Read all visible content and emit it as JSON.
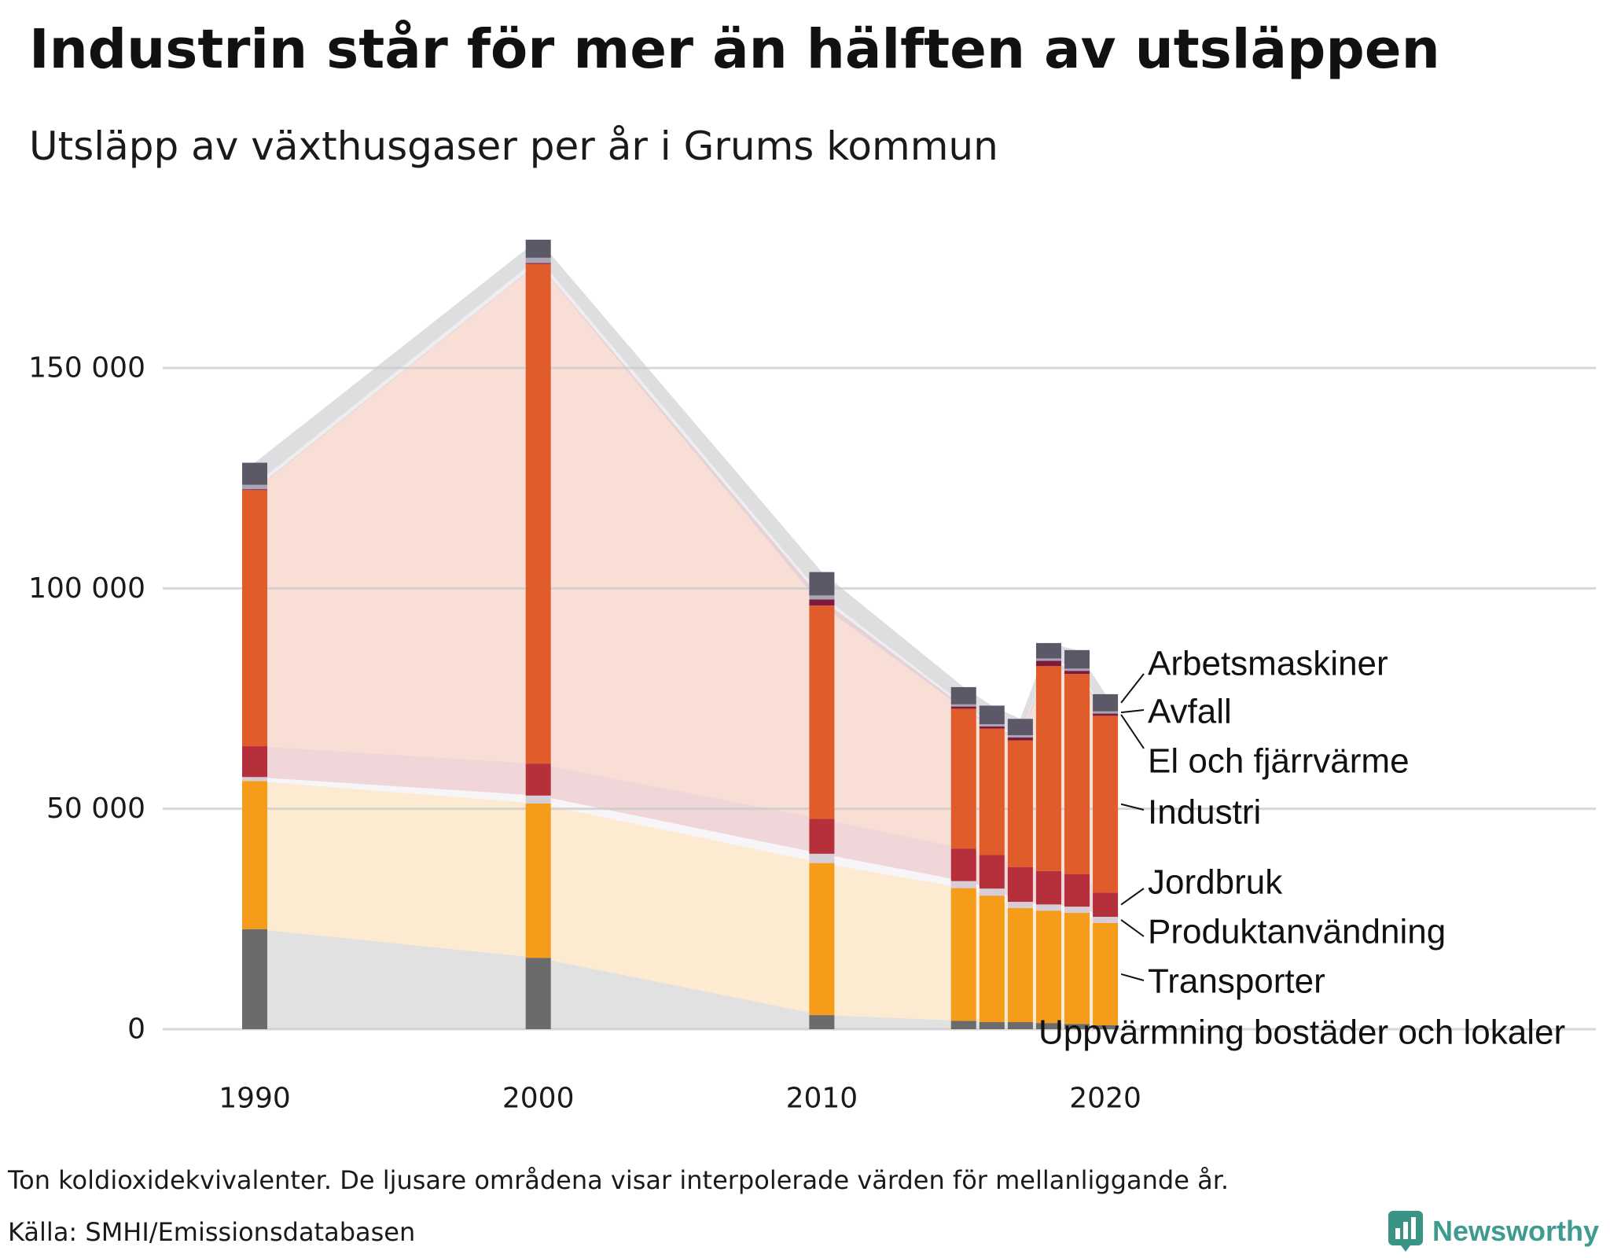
{
  "title": "Industrin står för mer än hälften av utsläppen",
  "subtitle": "Utsläpp av växthusgaser per år i Grums kommun",
  "footnote": "Ton koldioxidekvivalenter. De ljusare områdena visar interpolerade värden för mellanliggande år.",
  "source": "Källa: SMHI/Emissionsdatabasen",
  "brand": {
    "name": "Newsworthy",
    "icon": "newsworthy-logo-icon",
    "color": "#3a9486",
    "text_color": "#3d9b8f"
  },
  "chart_data": {
    "type": "bar",
    "stacked": true,
    "title": "Industrin står för mer än hälften av utsläppen",
    "subtitle": "Utsläpp av växthusgaser per år i Grums kommun",
    "xlabel": "",
    "ylabel": "",
    "x": [
      1990,
      2000,
      2010,
      2015,
      2016,
      2017,
      2018,
      2019,
      2020
    ],
    "x_ticks": [
      "1990",
      "2000",
      "2010",
      "2020"
    ],
    "y_ticks": [
      {
        "value": 0,
        "label": "0"
      },
      {
        "value": 50000,
        "label": "50 000"
      },
      {
        "value": 100000,
        "label": "100 000"
      },
      {
        "value": 150000,
        "label": "150 000"
      }
    ],
    "ylim": [
      0,
      180000
    ],
    "grid": true,
    "legend_placement": "right",
    "interpolated_areas": true,
    "series": [
      {
        "name": "Uppvärmning bostäder och lokaler",
        "color": "#6b6b6b",
        "values": [
          22700,
          16200,
          3200,
          1900,
          1600,
          1600,
          1400,
          1200,
          900
        ]
      },
      {
        "name": "Transporter",
        "color": "#f59c1a",
        "values": [
          33600,
          35000,
          34500,
          30100,
          28700,
          25900,
          25500,
          25200,
          23200
        ]
      },
      {
        "name": "Produktanvändning",
        "color": "#d6cdd6",
        "values": [
          900,
          1800,
          2100,
          1600,
          1600,
          1400,
          1400,
          1400,
          1400
        ]
      },
      {
        "name": "Jordbruk",
        "color": "#b5303a",
        "values": [
          7000,
          7200,
          7900,
          7400,
          7600,
          7900,
          7600,
          7400,
          5500
        ]
      },
      {
        "name": "Industri",
        "color": "#e05c2b",
        "values": [
          58100,
          113400,
          48400,
          31700,
          28700,
          28700,
          46500,
          45400,
          40100
        ]
      },
      {
        "name": "El och fjärrvärme",
        "color": "#7b1c3e",
        "values": [
          200,
          200,
          1400,
          500,
          500,
          700,
          1200,
          700,
          500
        ]
      },
      {
        "name": "Avfall",
        "color": "#aaa4b6",
        "values": [
          1000,
          1200,
          900,
          500,
          500,
          500,
          500,
          500,
          500
        ]
      },
      {
        "name": "Arbetsmaskiner",
        "color": "#5c5868",
        "values": [
          5000,
          4100,
          5300,
          3900,
          4200,
          3700,
          3500,
          4200,
          3900
        ]
      }
    ]
  }
}
